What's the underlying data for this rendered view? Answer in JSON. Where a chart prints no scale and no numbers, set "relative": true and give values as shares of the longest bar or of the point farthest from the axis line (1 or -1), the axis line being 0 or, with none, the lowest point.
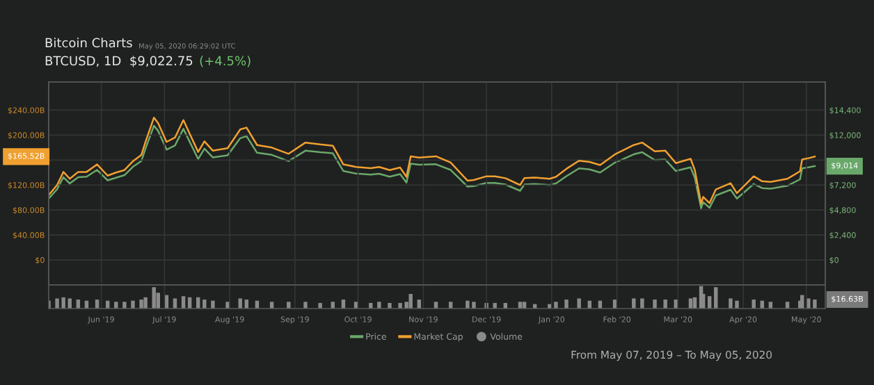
{
  "chart_data": [
    {
      "type": "line",
      "title": "Bitcoin Charts",
      "subtitle": "BTCUSD, 1D  $9,022.75",
      "annotations": [
        "May 05, 2020 06:29:02 UTC",
        "(+4.5%)",
        "$165.52B",
        "$9,014"
      ],
      "x": [
        "2019-05-07",
        "2019-05-11",
        "2019-05-14",
        "2019-05-17",
        "2019-05-21",
        "2019-05-25",
        "2019-05-30",
        "2019-06-04",
        "2019-06-08",
        "2019-06-12",
        "2019-06-16",
        "2019-06-20",
        "2019-06-22",
        "2019-06-26",
        "2019-06-28",
        "2019-07-02",
        "2019-07-06",
        "2019-07-10",
        "2019-07-13",
        "2019-07-17",
        "2019-07-20",
        "2019-07-24",
        "2019-07-31",
        "2019-08-06",
        "2019-08-09",
        "2019-08-14",
        "2019-08-21",
        "2019-08-29",
        "2019-09-06",
        "2019-09-13",
        "2019-09-19",
        "2019-09-24",
        "2019-09-30",
        "2019-10-07",
        "2019-10-11",
        "2019-10-16",
        "2019-10-21",
        "2019-10-24",
        "2019-10-26",
        "2019-10-30",
        "2019-11-07",
        "2019-11-14",
        "2019-11-22",
        "2019-11-25",
        "2019-12-01",
        "2019-12-05",
        "2019-12-10",
        "2019-12-17",
        "2019-12-19",
        "2019-12-24",
        "2019-12-31",
        "2020-01-03",
        "2020-01-08",
        "2020-01-14",
        "2020-01-19",
        "2020-01-24",
        "2020-01-31",
        "2020-02-09",
        "2020-02-13",
        "2020-02-19",
        "2020-02-24",
        "2020-02-29",
        "2020-03-07",
        "2020-03-09",
        "2020-03-12",
        "2020-03-13",
        "2020-03-16",
        "2020-03-19",
        "2020-03-26",
        "2020-03-29",
        "2020-04-06",
        "2020-04-10",
        "2020-04-14",
        "2020-04-22",
        "2020-04-28",
        "2020-04-29",
        "2020-05-02",
        "2020-05-05"
      ],
      "series": [
        {
          "name": "Price",
          "color": "#6aa86a",
          "axis": "y2",
          "values": [
            5900,
            6800,
            7950,
            7350,
            7950,
            8000,
            8650,
            7650,
            7900,
            8150,
            8950,
            9500,
            10700,
            12900,
            12400,
            10600,
            11000,
            12600,
            11350,
            9700,
            10700,
            9850,
            10050,
            11700,
            11900,
            10300,
            10100,
            9500,
            10500,
            10350,
            10250,
            8550,
            8300,
            8200,
            8280,
            8000,
            8250,
            7430,
            9250,
            9150,
            9200,
            8650,
            7050,
            7100,
            7400,
            7400,
            7250,
            6650,
            7250,
            7300,
            7200,
            7350,
            8050,
            8800,
            8700,
            8400,
            9350,
            10150,
            10350,
            9600,
            9650,
            8550,
            8900,
            7900,
            4970,
            5560,
            5010,
            6200,
            6750,
            5900,
            7300,
            6900,
            6850,
            7130,
            7750,
            8800,
            8900,
            9014
          ]
        },
        {
          "name": "Market Cap",
          "color": "#f0a030",
          "values": [
            104,
            120,
            141,
            130,
            141,
            141,
            153,
            135,
            140,
            144,
            158,
            168,
            189,
            228,
            219,
            189,
            196,
            224,
            202,
            173,
            190,
            175,
            179,
            209,
            212,
            184,
            180,
            170,
            188,
            185,
            183,
            153,
            149,
            147,
            149,
            144,
            148,
            133,
            166,
            164,
            166,
            156,
            127,
            128,
            134,
            134,
            131,
            120,
            131,
            132,
            130,
            133,
            146,
            159,
            157,
            152,
            169,
            184,
            188,
            174,
            175,
            155,
            162,
            144,
            90,
            101,
            91,
            113,
            123,
            107,
            134,
            126,
            125,
            130,
            142,
            161,
            163,
            165.52
          ]
        }
      ],
      "xlim": [
        "2019-05-07",
        "2020-05-10"
      ],
      "xticks": [
        {
          "value": "2019-06-01",
          "label": null
        },
        {
          "value": "2019-07-01",
          "label": null
        },
        {
          "value": "2019-08-01",
          "label": null
        },
        {
          "value": "2019-09-01",
          "label": null
        },
        {
          "value": "2019-10-01",
          "label": null
        },
        {
          "value": "2019-11-01",
          "label": null
        },
        {
          "value": "2019-12-01",
          "label": null
        },
        {
          "value": "2020-01-01",
          "label": null
        },
        {
          "value": "2020-02-01",
          "label": null
        },
        {
          "value": "2020-03-01",
          "label": null
        },
        {
          "value": "2020-04-01",
          "label": null
        },
        {
          "value": "2020-05-01",
          "label": null
        }
      ],
      "ylim": [
        -40,
        285
      ],
      "yticks": [
        {
          "value": 0,
          "label": "$0"
        },
        {
          "value": 40,
          "label": "$40.00B"
        },
        {
          "value": 80,
          "label": "$80.00B"
        },
        {
          "value": 120,
          "label": "$120.00B"
        },
        {
          "value": 160,
          "label": null
        },
        {
          "value": 200,
          "label": "$200.00B"
        },
        {
          "value": 240,
          "label": "$240.00B"
        }
      ],
      "y2lim": [
        -2400,
        17100
      ],
      "y2ticks": [
        {
          "value": 0,
          "label": "$0"
        },
        {
          "value": 2400,
          "label": "$2,400"
        },
        {
          "value": 4800,
          "label": "$4,800"
        },
        {
          "value": 7200,
          "label": "$7,200"
        },
        {
          "value": 9600,
          "label": null
        },
        {
          "value": 12000,
          "label": "$12,000"
        },
        {
          "value": 14400,
          "label": "$14,400"
        }
      ],
      "tick_labels": "y",
      "grid": true,
      "legend": "bottom",
      "line_style": "solid"
    },
    {
      "type": "bar",
      "relative": true,
      "annotations": [
        "$16.63B",
        "From May 07, 2019 – To May 05, 2020"
      ],
      "x": [
        "2019-05-07",
        "2019-05-11",
        "2019-05-14",
        "2019-05-17",
        "2019-05-21",
        "2019-05-25",
        "2019-05-30",
        "2019-06-04",
        "2019-06-08",
        "2019-06-12",
        "2019-06-16",
        "2019-06-20",
        "2019-06-22",
        "2019-06-26",
        "2019-06-28",
        "2019-07-02",
        "2019-07-06",
        "2019-07-10",
        "2019-07-13",
        "2019-07-17",
        "2019-07-20",
        "2019-07-24",
        "2019-07-31",
        "2019-08-06",
        "2019-08-09",
        "2019-08-14",
        "2019-08-21",
        "2019-08-29",
        "2019-09-06",
        "2019-09-13",
        "2019-09-19",
        "2019-09-24",
        "2019-09-30",
        "2019-10-07",
        "2019-10-11",
        "2019-10-16",
        "2019-10-21",
        "2019-10-24",
        "2019-10-26",
        "2019-10-30",
        "2019-11-07",
        "2019-11-14",
        "2019-11-22",
        "2019-11-25",
        "2019-12-01",
        "2019-12-05",
        "2019-12-10",
        "2019-12-17",
        "2019-12-19",
        "2019-12-24",
        "2019-12-31",
        "2020-01-03",
        "2020-01-08",
        "2020-01-14",
        "2020-01-19",
        "2020-01-24",
        "2020-01-31",
        "2020-02-09",
        "2020-02-13",
        "2020-02-19",
        "2020-02-24",
        "2020-02-29",
        "2020-03-07",
        "2020-03-09",
        "2020-03-12",
        "2020-03-13",
        "2020-03-16",
        "2020-03-19",
        "2020-03-26",
        "2020-03-29",
        "2020-04-06",
        "2020-04-10",
        "2020-04-14",
        "2020-04-22",
        "2020-04-28",
        "2020-04-29",
        "2020-05-02",
        "2020-05-05"
      ],
      "series": [
        {
          "name": "Volume",
          "color": "#8a8a8a",
          "values": [
            0.35,
            0.45,
            0.5,
            0.45,
            0.4,
            0.35,
            0.4,
            0.35,
            0.3,
            0.3,
            0.35,
            0.4,
            0.5,
            0.95,
            0.7,
            0.6,
            0.45,
            0.55,
            0.5,
            0.5,
            0.4,
            0.35,
            0.3,
            0.45,
            0.4,
            0.35,
            0.3,
            0.3,
            0.3,
            0.25,
            0.3,
            0.4,
            0.3,
            0.25,
            0.3,
            0.25,
            0.25,
            0.3,
            0.65,
            0.4,
            0.3,
            0.3,
            0.35,
            0.3,
            0.25,
            0.25,
            0.25,
            0.3,
            0.3,
            0.2,
            0.2,
            0.3,
            0.4,
            0.45,
            0.35,
            0.35,
            0.4,
            0.45,
            0.45,
            0.4,
            0.4,
            0.4,
            0.45,
            0.5,
            1,
            0.65,
            0.55,
            0.95,
            0.45,
            0.35,
            0.4,
            0.35,
            0.3,
            0.3,
            0.35,
            0.6,
            0.45,
            0.4
          ]
        }
      ],
      "xlim": [
        "2019-05-07",
        "2020-05-10"
      ],
      "xticks": [
        {
          "value": "2019-06-01",
          "label": "Jun '19"
        },
        {
          "value": "2019-07-01",
          "label": "Jul '19"
        },
        {
          "value": "2019-08-01",
          "label": "Aug '19"
        },
        {
          "value": "2019-09-01",
          "label": "Sep '19"
        },
        {
          "value": "2019-10-01",
          "label": "Oct '19"
        },
        {
          "value": "2019-11-01",
          "label": "Nov '19"
        },
        {
          "value": "2019-12-01",
          "label": "Dec '19"
        },
        {
          "value": "2020-01-01",
          "label": "Jan '20"
        },
        {
          "value": "2020-02-01",
          "label": "Feb '20"
        },
        {
          "value": "2020-03-01",
          "label": "Mar '20"
        },
        {
          "value": "2020-04-01",
          "label": "Apr '20"
        },
        {
          "value": "2020-05-01",
          "label": "May '20"
        }
      ],
      "tick_labels": "x",
      "grid": "x",
      "legend": "bottom"
    }
  ]
}
